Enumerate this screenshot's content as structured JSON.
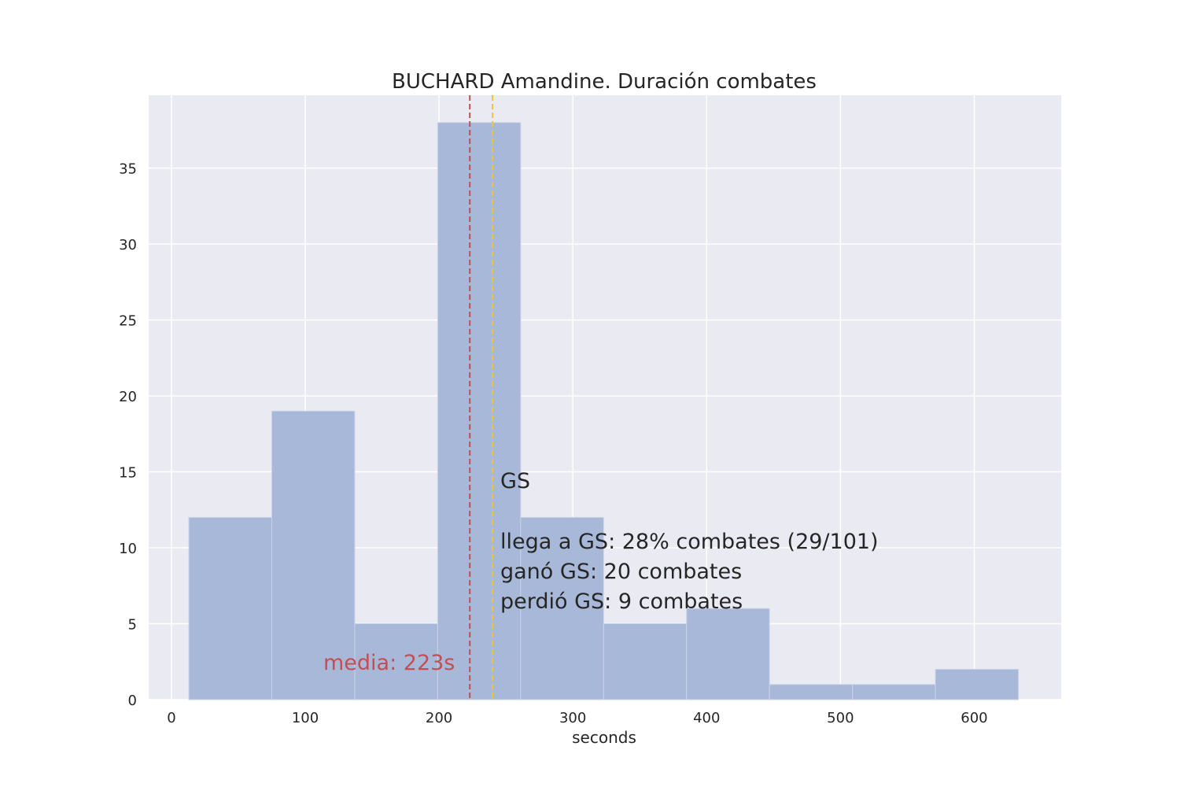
{
  "chart_data": {
    "type": "bar",
    "title": "BUCHARD Amandine. Duración combates",
    "xlabel": "seconds",
    "ylabel": "",
    "xlim": [
      -17,
      665
    ],
    "ylim": [
      0,
      39.8
    ],
    "xticks": [
      0,
      100,
      200,
      300,
      400,
      500,
      600
    ],
    "yticks": [
      0,
      5,
      10,
      15,
      20,
      25,
      30,
      35
    ],
    "grid": true,
    "bins": [
      {
        "start": 13,
        "end": 75,
        "count": 12
      },
      {
        "start": 75,
        "end": 137,
        "count": 19
      },
      {
        "start": 137,
        "end": 199,
        "count": 5
      },
      {
        "start": 199,
        "end": 261,
        "count": 38
      },
      {
        "start": 261,
        "end": 323,
        "count": 12
      },
      {
        "start": 323,
        "end": 385,
        "count": 5
      },
      {
        "start": 385,
        "end": 447,
        "count": 6
      },
      {
        "start": 447,
        "end": 509,
        "count": 1
      },
      {
        "start": 509,
        "end": 571,
        "count": 1
      },
      {
        "start": 571,
        "end": 633,
        "count": 2
      }
    ],
    "vlines": [
      {
        "x": 223,
        "color": "#c44e52",
        "style": "dashed"
      },
      {
        "x": 240,
        "color": "#f2c12e",
        "style": "dashed"
      }
    ],
    "annotations": {
      "mean_label": "media: 223s",
      "gs_header": "GS",
      "gs_lines": [
        "llega a GS: 28% combates (29/101)",
        "ganó GS: 20 combates",
        "perdió GS: 9 combates"
      ]
    },
    "colors": {
      "background": "#eaeaf2",
      "bar": "#a8b8d8",
      "grid": "#ffffff",
      "mean_text": "#c44e52"
    }
  }
}
